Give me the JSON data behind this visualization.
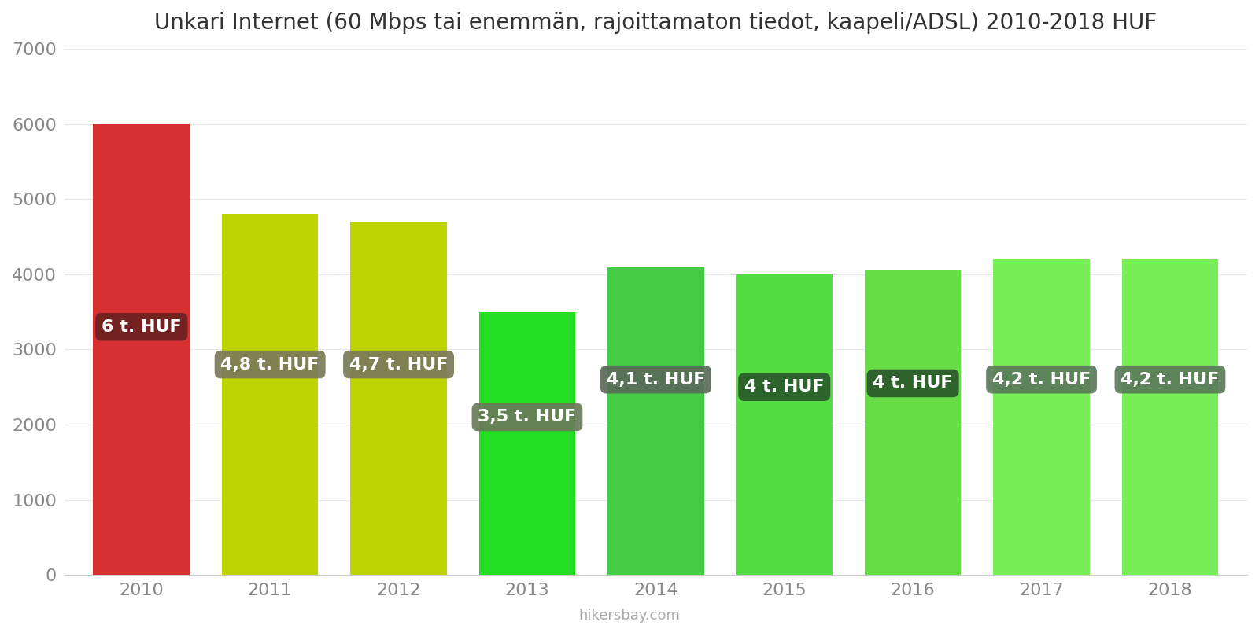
{
  "title": "Unkari Internet (60 Mbps tai enemmän, rajoittamaton tiedot, kaapeli/ADSL) 2010-2018 HUF",
  "years": [
    2010,
    2011,
    2012,
    2013,
    2014,
    2015,
    2016,
    2017,
    2018
  ],
  "values": [
    6000,
    4800,
    4700,
    3500,
    4100,
    4000,
    4050,
    4200,
    4200
  ],
  "labels": [
    "6 t. HUF",
    "4,8 t. HUF",
    "4,7 t. HUF",
    "3,5 t. HUF",
    "4,1 t. HUF",
    "4 t. HUF",
    "4 t. HUF",
    "4,2 t. HUF",
    "4,2 t. HUF"
  ],
  "bar_colors": [
    "#d63030",
    "#bdd400",
    "#bdd400",
    "#22dd22",
    "#44cc44",
    "#55dd44",
    "#66dd44",
    "#77ee55",
    "#77ee55"
  ],
  "label_bg_colors": [
    "#6b2020",
    "#7a7a5a",
    "#7a7a5a",
    "#6a7a5a",
    "#5a6a5a",
    "#2a5a2a",
    "#2a5a2a",
    "#5a7a5a",
    "#5a7a5a"
  ],
  "label_y_positions": [
    3300,
    2800,
    2800,
    2100,
    2600,
    2500,
    2550,
    2600,
    2600
  ],
  "ylim": [
    0,
    7000
  ],
  "yticks": [
    0,
    1000,
    2000,
    3000,
    4000,
    5000,
    6000,
    7000
  ],
  "label_text_color": "#ffffff",
  "watermark": "hikersbay.com",
  "title_fontsize": 20,
  "tick_fontsize": 16,
  "label_fontsize": 16,
  "bar_width": 0.75
}
